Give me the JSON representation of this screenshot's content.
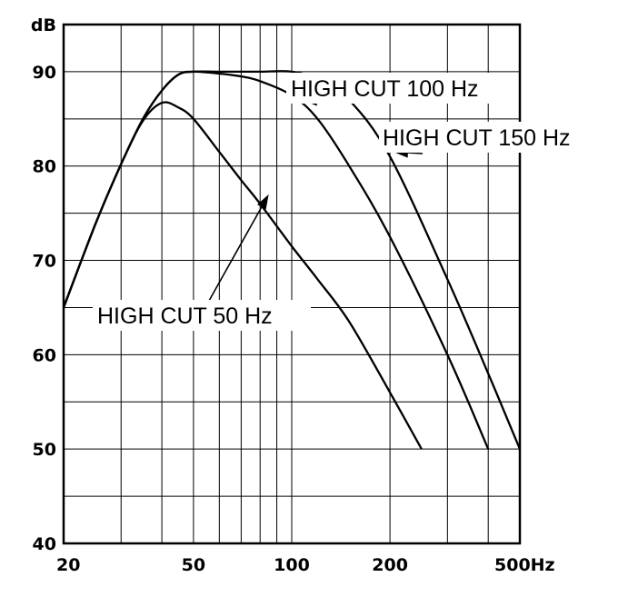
{
  "chart_data": {
    "type": "line",
    "title": "",
    "xlabel": "",
    "ylabel": "",
    "x_scale": "log",
    "xlim": [
      20,
      500
    ],
    "ylim": [
      40,
      90
    ],
    "y_unit": "dB",
    "x_unit": "Hz",
    "grid": true,
    "x_tick_labels": [
      {
        "value": 20,
        "label": "20"
      },
      {
        "value": 50,
        "label": "50"
      },
      {
        "value": 100,
        "label": "100"
      },
      {
        "value": 200,
        "label": "200"
      },
      {
        "value": 500,
        "label": "500Hz"
      }
    ],
    "y_tick_labels": [
      {
        "value": 40,
        "label": "40"
      },
      {
        "value": 50,
        "label": "50"
      },
      {
        "value": 60,
        "label": "60"
      },
      {
        "value": 70,
        "label": "70"
      },
      {
        "value": 80,
        "label": "80"
      },
      {
        "value": 90,
        "label": "90"
      },
      {
        "value": 95,
        "label": "dB"
      }
    ],
    "series": [
      {
        "name": "HIGH CUT 50 Hz",
        "x": [
          20,
          25,
          30,
          35,
          40,
          45,
          50,
          60,
          70,
          80,
          100,
          120,
          150,
          200,
          250
        ],
        "y": [
          65,
          73.8,
          80.2,
          84.8,
          86.7,
          86.2,
          85,
          81.5,
          78.5,
          76,
          71.5,
          68,
          63.5,
          56,
          50
        ]
      },
      {
        "name": "HIGH CUT 100 Hz",
        "x": [
          20,
          25,
          30,
          35,
          40,
          45,
          50,
          60,
          70,
          80,
          100,
          120,
          150,
          200,
          300,
          400
        ],
        "y": [
          65,
          73.8,
          80.2,
          85,
          88,
          89.7,
          90,
          89.8,
          89.5,
          89,
          87.5,
          85,
          80,
          72.5,
          60,
          50
        ]
      },
      {
        "name": "HIGH CUT 150 Hz",
        "x": [
          20,
          25,
          30,
          35,
          40,
          45,
          50,
          60,
          70,
          80,
          100,
          120,
          150,
          200,
          300,
          400,
          500
        ],
        "y": [
          65,
          73.8,
          80.2,
          85,
          88,
          89.7,
          90,
          90,
          90,
          90,
          90,
          89.2,
          87,
          81,
          68,
          58,
          50
        ]
      }
    ],
    "annotations": [
      {
        "text": "HIGH CUT 100 Hz",
        "series": "HIGH CUT 100 Hz",
        "arrow_to": {
          "x": 108,
          "y": 87
        }
      },
      {
        "text": "HIGH CUT 150 Hz",
        "series": "HIGH CUT 150 Hz",
        "arrow_to": {
          "x": 205,
          "y": 81.5
        }
      },
      {
        "text": "HIGH CUT 50 Hz",
        "series": "HIGH CUT 50 Hz",
        "arrow_to": {
          "x": 85,
          "y": 77
        }
      }
    ]
  }
}
